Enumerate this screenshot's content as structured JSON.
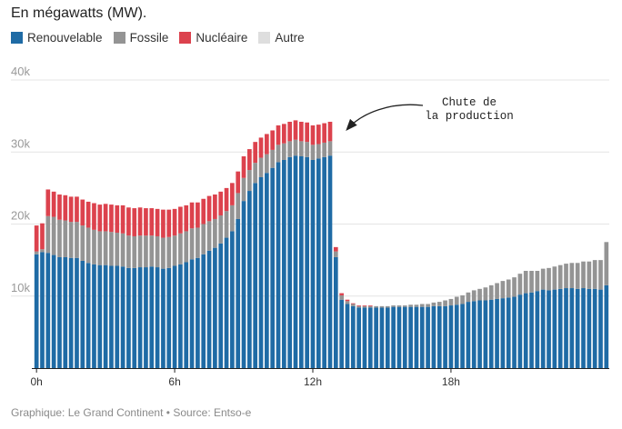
{
  "chart_data": {
    "type": "bar",
    "stacked": true,
    "subtitle": "En mégawatts (MW).",
    "source": "Graphique: Le Grand Continent • Source: Entso-e",
    "annotation": [
      "Chute de",
      "la production"
    ],
    "y_ticks": [
      {
        "value": 10000,
        "label": "10k"
      },
      {
        "value": 20000,
        "label": "20k"
      },
      {
        "value": 30000,
        "label": "30k"
      },
      {
        "value": 40000,
        "label": "40k"
      }
    ],
    "x_ticks": [
      {
        "index": 0,
        "label": "0h"
      },
      {
        "index": 24,
        "label": "6h"
      },
      {
        "index": 48,
        "label": "12h"
      },
      {
        "index": 72,
        "label": "18h"
      }
    ],
    "ylim": [
      0,
      40000
    ],
    "interval_minutes": 15,
    "series": [
      {
        "name": "Renouvelable",
        "color": "#1f6ba5",
        "values": [
          15800,
          16100,
          16000,
          15700,
          15400,
          15400,
          15300,
          15300,
          14900,
          14600,
          14400,
          14300,
          14300,
          14200,
          14200,
          14100,
          13900,
          13900,
          14000,
          14000,
          14100,
          14000,
          13800,
          13900,
          14200,
          14400,
          14700,
          15100,
          15300,
          15800,
          16300,
          16700,
          17300,
          18100,
          19000,
          20700,
          23200,
          24600,
          25700,
          26500,
          27100,
          27800,
          28600,
          28900,
          29300,
          29500,
          29400,
          29300,
          28900,
          29100,
          29300,
          29500,
          15400,
          9500,
          8900,
          8600,
          8400,
          8400,
          8400,
          8400,
          8400,
          8400,
          8500,
          8500,
          8500,
          8500,
          8500,
          8500,
          8500,
          8600,
          8600,
          8600,
          8700,
          8800,
          8900,
          9200,
          9300,
          9400,
          9400,
          9500,
          9600,
          9700,
          9800,
          9900,
          10200,
          10400,
          10500,
          10700,
          10900,
          10800,
          10900,
          11000,
          11100,
          11100,
          11000,
          11100,
          11000,
          11000,
          10900,
          11500
        ]
      },
      {
        "name": "Fossile",
        "color": "#949494",
        "values": [
          400,
          400,
          5100,
          5300,
          5200,
          5100,
          5000,
          5000,
          4900,
          4900,
          4800,
          4700,
          4700,
          4700,
          4600,
          4600,
          4500,
          4400,
          4400,
          4400,
          4300,
          4300,
          4300,
          4300,
          4200,
          4300,
          4300,
          4300,
          4200,
          4200,
          4100,
          4000,
          3900,
          3700,
          3600,
          3600,
          3200,
          2900,
          2800,
          2700,
          2600,
          2500,
          2400,
          2300,
          2200,
          2200,
          2100,
          2100,
          2100,
          2000,
          2000,
          2000,
          800,
          600,
          400,
          300,
          200,
          200,
          200,
          200,
          200,
          200,
          200,
          200,
          200,
          300,
          300,
          400,
          400,
          500,
          600,
          800,
          900,
          1100,
          1200,
          1300,
          1500,
          1600,
          1800,
          2000,
          2200,
          2400,
          2500,
          2700,
          2900,
          3100,
          3000,
          2800,
          2900,
          3100,
          3200,
          3300,
          3400,
          3500,
          3600,
          3700,
          3800,
          4000,
          4100,
          6000
        ]
      },
      {
        "name": "Nucléaire",
        "color": "#dc424d",
        "values": [
          3600,
          3600,
          3700,
          3500,
          3500,
          3500,
          3500,
          3500,
          3600,
          3600,
          3700,
          3700,
          3800,
          3800,
          3800,
          3900,
          3900,
          3900,
          3900,
          3800,
          3800,
          3800,
          3900,
          3800,
          3700,
          3700,
          3600,
          3600,
          3500,
          3500,
          3500,
          3400,
          3300,
          3200,
          3100,
          3000,
          3000,
          2900,
          2900,
          2800,
          2800,
          2700,
          2700,
          2700,
          2700,
          2700,
          2700,
          2700,
          2700,
          2700,
          2700,
          2700,
          600,
          300,
          200,
          100,
          100,
          100,
          100,
          0,
          0,
          0,
          0,
          0,
          0,
          0,
          0,
          0,
          0,
          0,
          0,
          0,
          0,
          0,
          0,
          0,
          0,
          0,
          0,
          0,
          0,
          0,
          0,
          0,
          0,
          0,
          0,
          0,
          0,
          0,
          0,
          0,
          0,
          0,
          0,
          0,
          0,
          0,
          0,
          0
        ]
      },
      {
        "name": "Autre",
        "color": "#dedede",
        "values": [
          0,
          0,
          0,
          0,
          0,
          0,
          0,
          0,
          0,
          0,
          0,
          0,
          0,
          0,
          0,
          0,
          0,
          0,
          0,
          0,
          0,
          0,
          0,
          0,
          0,
          0,
          0,
          0,
          0,
          0,
          0,
          0,
          0,
          0,
          0,
          0,
          0,
          0,
          0,
          0,
          0,
          0,
          0,
          0,
          0,
          0,
          0,
          0,
          0,
          0,
          0,
          0,
          0,
          0,
          0,
          0,
          0,
          0,
          0,
          0,
          0,
          0,
          0,
          0,
          0,
          0,
          0,
          0,
          0,
          0,
          0,
          0,
          0,
          0,
          0,
          0,
          0,
          0,
          0,
          0,
          0,
          0,
          0,
          0,
          0,
          0,
          0,
          0,
          0,
          0,
          0,
          0,
          0,
          0,
          0,
          0,
          0,
          0,
          0,
          0
        ]
      }
    ]
  }
}
